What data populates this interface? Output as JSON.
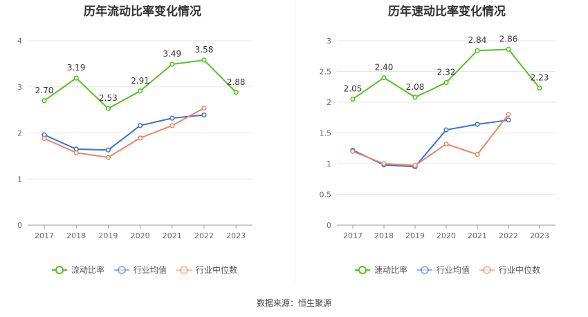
{
  "source_text": "数据来源：恒生聚源",
  "chart_data": [
    {
      "type": "line",
      "title": "历年流动比率变化情况",
      "categories": [
        "2017",
        "2018",
        "2019",
        "2020",
        "2021",
        "2022",
        "2023"
      ],
      "ylim": [
        0,
        4
      ],
      "yticks": [
        "0",
        "1",
        "2",
        "3",
        "4"
      ],
      "grid": true,
      "legend_position": "bottom",
      "series": [
        {
          "name": "流动比率",
          "color": "#52c41a",
          "values": [
            2.7,
            3.19,
            2.53,
            2.91,
            3.49,
            3.58,
            2.88
          ],
          "labels": [
            "2.70",
            "3.19",
            "2.53",
            "2.91",
            "3.49",
            "3.58",
            "2.88"
          ]
        },
        {
          "name": "行业均值",
          "color": "#3a72d8",
          "values": [
            1.96,
            1.65,
            1.63,
            2.16,
            2.32,
            2.39,
            null
          ]
        },
        {
          "name": "行业中位数",
          "color": "#f0845c",
          "values": [
            1.88,
            1.57,
            1.47,
            1.89,
            2.16,
            2.54,
            null
          ]
        }
      ]
    },
    {
      "type": "line",
      "title": "历年速动比率变化情况",
      "categories": [
        "2017",
        "2018",
        "2019",
        "2020",
        "2021",
        "2022",
        "2023"
      ],
      "ylim": [
        0,
        3
      ],
      "yticks": [
        "0",
        "0.5",
        "1",
        "1.5",
        "2",
        "2.5",
        "3"
      ],
      "grid": true,
      "legend_position": "bottom",
      "series": [
        {
          "name": "速动比率",
          "color": "#52c41a",
          "values": [
            2.05,
            2.4,
            2.08,
            2.32,
            2.84,
            2.86,
            2.23
          ],
          "labels": [
            "2.05",
            "2.40",
            "2.08",
            "2.32",
            "2.84",
            "2.86",
            "2.23"
          ]
        },
        {
          "name": "行业均值",
          "color": "#3a72d8",
          "values": [
            1.22,
            0.98,
            0.95,
            1.55,
            1.64,
            1.71,
            null
          ]
        },
        {
          "name": "行业中位数",
          "color": "#f0845c",
          "values": [
            1.2,
            1.0,
            0.97,
            1.32,
            1.15,
            1.8,
            null
          ]
        }
      ]
    }
  ]
}
